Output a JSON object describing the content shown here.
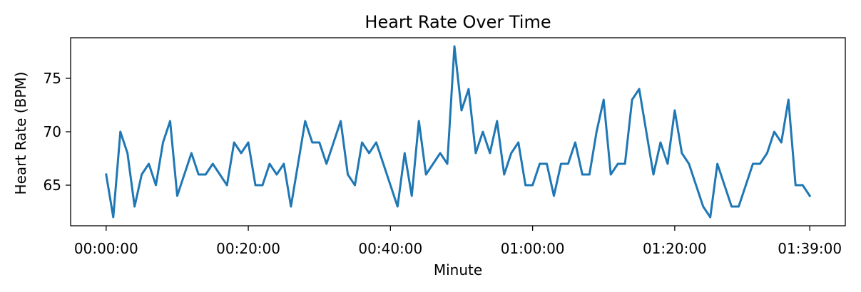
{
  "chart_data": {
    "type": "line",
    "title": "Heart Rate Over Time",
    "xlabel": "Minute",
    "ylabel": "Heart Rate (BPM)",
    "x_start": "00:00:00",
    "x_step_minutes": 1,
    "xlim_minutes": [
      -5,
      104
    ],
    "ylim": [
      61.2,
      78.8
    ],
    "x_ticks": [
      {
        "minute": 0,
        "label": "00:00:00"
      },
      {
        "minute": 20,
        "label": "00:20:00"
      },
      {
        "minute": 40,
        "label": "00:40:00"
      },
      {
        "minute": 60,
        "label": "01:00:00"
      },
      {
        "minute": 80,
        "label": "01:20:00"
      },
      {
        "minute": 99,
        "label": "01:39:00"
      }
    ],
    "y_ticks": [
      {
        "value": 65,
        "label": "65"
      },
      {
        "value": 70,
        "label": "70"
      },
      {
        "value": 75,
        "label": "75"
      }
    ],
    "grid": false,
    "legend": "none",
    "series": [
      {
        "color": "#1f77b4",
        "values": [
          66,
          62,
          70,
          68,
          63,
          66,
          67,
          65,
          69,
          71,
          64,
          66,
          68,
          66,
          66,
          67,
          66,
          65,
          69,
          68,
          69,
          65,
          65,
          67,
          66,
          67,
          63,
          67,
          71,
          69,
          69,
          67,
          69,
          71,
          66,
          65,
          69,
          68,
          69,
          67,
          65,
          63,
          68,
          64,
          71,
          66,
          67,
          68,
          67,
          78,
          72,
          74,
          68,
          70,
          68,
          71,
          66,
          68,
          69,
          65,
          65,
          67,
          67,
          64,
          67,
          67,
          69,
          66,
          66,
          70,
          73,
          66,
          67,
          67,
          73,
          74,
          70,
          66,
          69,
          67,
          72,
          68,
          67,
          65,
          63,
          62,
          67,
          65,
          63,
          63,
          65,
          67,
          67,
          68,
          70,
          69,
          73,
          65,
          65,
          64
        ]
      }
    ]
  }
}
